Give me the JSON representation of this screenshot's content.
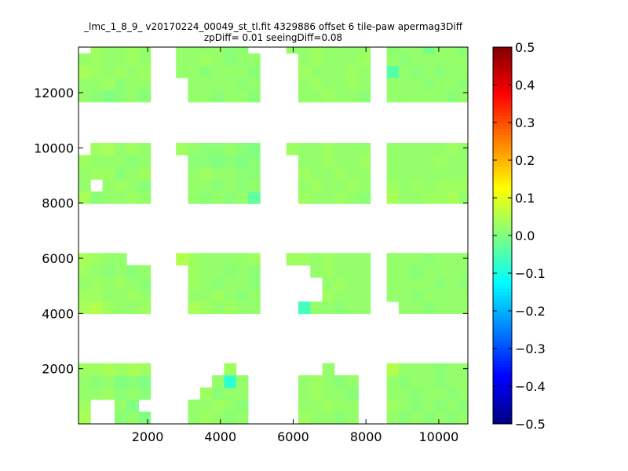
{
  "chart_data": {
    "type": "heatmap",
    "title": "_lmc_1_8_9_ v20170224_00049_st_tl.fit 4329886 offset 6 tile-paw apermag3Diff",
    "subtitle": "zpDiff= 0.01 seeingDiff=0.08",
    "xlabel": "",
    "ylabel": "",
    "xlim": [
      100,
      10800
    ],
    "ylim": [
      0,
      13650
    ],
    "xticks": [
      2000,
      4000,
      6000,
      8000,
      10000
    ],
    "xtick_labels": [
      "2000",
      "4000",
      "6000",
      "8000",
      "10000"
    ],
    "yticks": [
      2000,
      4000,
      6000,
      8000,
      10000,
      12000
    ],
    "ytick_labels": [
      "2000",
      "4000",
      "6000",
      "8000",
      "10000",
      "12000"
    ],
    "grid": false,
    "colormap": "jet",
    "value_range": [
      -0.5,
      0.5
    ],
    "colorbar": {
      "ticks": [
        0.5,
        0.4,
        0.3,
        0.2,
        0.1,
        0.0,
        -0.1,
        -0.2,
        -0.3,
        -0.4,
        -0.5
      ],
      "tick_labels": [
        "0.5",
        "0.4",
        "0.3",
        "0.2",
        "0.1",
        "0.0",
        "−0.1",
        "−0.2",
        "−0.3",
        "−0.4",
        "−0.5"
      ]
    },
    "cell_size": [
      330,
      440
    ],
    "cell_columns": [
      [
        100,
        430,
        760,
        1090,
        1420,
        1750
      ],
      [
        2780,
        3110,
        3440,
        3770,
        4100,
        4430,
        4760
      ],
      [
        5810,
        6140,
        6470,
        6800,
        7130,
        7460,
        7790
      ],
      [
        8570,
        8900,
        9230,
        9560,
        9890,
        10220,
        10550
      ]
    ],
    "cell_rows": [
      [
        0,
        440,
        880,
        1320,
        1760
      ],
      [
        3990,
        4430,
        4870,
        5310,
        5750
      ],
      [
        7980,
        8420,
        8860,
        9300,
        9740
      ],
      [
        11660,
        12100,
        12540,
        12980,
        13420
      ]
    ],
    "missing_cells": [
      [
        0,
        0,
        0,
        1
      ],
      [
        0,
        0,
        0,
        2
      ],
      [
        0,
        0,
        1,
        1
      ],
      [
        0,
        0,
        1,
        2
      ],
      [
        0,
        1,
        4,
        4
      ],
      [
        0,
        1,
        4,
        5
      ],
      [
        0,
        1,
        4,
        6
      ],
      [
        0,
        2,
        4,
        0
      ],
      [
        0,
        2,
        1,
        1
      ],
      [
        0,
        2,
        4,
        6
      ],
      [
        0,
        3,
        4,
        0
      ],
      [
        1,
        0,
        0,
        0
      ],
      [
        1,
        0,
        1,
        0
      ],
      [
        1,
        0,
        2,
        0
      ],
      [
        1,
        0,
        2,
        1
      ],
      [
        1,
        0,
        3,
        0
      ],
      [
        1,
        0,
        3,
        1
      ],
      [
        1,
        0,
        3,
        2
      ],
      [
        1,
        0,
        4,
        0
      ],
      [
        1,
        0,
        4,
        1
      ],
      [
        1,
        0,
        4,
        2
      ],
      [
        1,
        0,
        4,
        3
      ],
      [
        1,
        0,
        4,
        5
      ],
      [
        1,
        1,
        0,
        0
      ],
      [
        1,
        1,
        1,
        0
      ],
      [
        1,
        1,
        2,
        0
      ],
      [
        1,
        1,
        3,
        0
      ],
      [
        1,
        2,
        0,
        0
      ],
      [
        1,
        2,
        1,
        0
      ],
      [
        1,
        2,
        2,
        0
      ],
      [
        1,
        2,
        3,
        0
      ],
      [
        1,
        3,
        0,
        0
      ],
      [
        1,
        3,
        1,
        0
      ],
      [
        1,
        3,
        4,
        6
      ],
      [
        2,
        0,
        0,
        0
      ],
      [
        2,
        0,
        1,
        0
      ],
      [
        2,
        0,
        2,
        0
      ],
      [
        2,
        0,
        3,
        0
      ],
      [
        2,
        0,
        4,
        0
      ],
      [
        2,
        0,
        4,
        1
      ],
      [
        2,
        0,
        4,
        2
      ],
      [
        2,
        0,
        4,
        4
      ],
      [
        2,
        0,
        4,
        5
      ],
      [
        2,
        1,
        0,
        0
      ],
      [
        2,
        1,
        1,
        0
      ],
      [
        2,
        1,
        1,
        1
      ],
      [
        2,
        1,
        1,
        2
      ],
      [
        2,
        1,
        2,
        0
      ],
      [
        2,
        1,
        2,
        1
      ],
      [
        2,
        1,
        2,
        2
      ],
      [
        2,
        1,
        3,
        0
      ],
      [
        2,
        1,
        3,
        1
      ],
      [
        2,
        2,
        0,
        0
      ],
      [
        2,
        2,
        1,
        0
      ],
      [
        2,
        2,
        2,
        0
      ],
      [
        2,
        2,
        3,
        0
      ],
      [
        2,
        3,
        0,
        0
      ],
      [
        2,
        3,
        1,
        0
      ],
      [
        2,
        3,
        2,
        0
      ],
      [
        2,
        3,
        3,
        0
      ]
    ],
    "cell_values": {
      "0,0,0,0": 0.04,
      "0,0,0,3": 0.01,
      "0,0,0,4": 0.02,
      "0,0,0,5": 0.0,
      "0,0,1,0": 0.03,
      "0,0,1,3": 0.02,
      "0,0,1,4": 0.0,
      "0,0,2,0": 0.02,
      "0,0,2,1": 0.02,
      "0,0,2,2": 0.03,
      "0,0,2,3": 0.01,
      "0,0,2,4": 0.02,
      "0,0,2,5": 0.01,
      "0,0,3,0": 0.02,
      "0,0,3,1": 0.01,
      "0,0,3,2": 0.02,
      "0,0,3,3": 0.0,
      "0,0,3,4": 0.01,
      "0,0,3,5": 0.0,
      "0,0,4,0": 0.03,
      "0,0,4,1": 0.03,
      "0,0,4,2": 0.04,
      "0,0,4,3": 0.03,
      "0,0,4,4": 0.04,
      "0,0,4,5": 0.03,
      "0,1,0,0": 0.04,
      "0,1,0,1": 0.05,
      "0,1,0,2": 0.03,
      "0,1,0,3": 0.02,
      "0,1,0,4": 0.02,
      "0,1,0,5": 0.03,
      "0,1,1,0": 0.03,
      "0,1,1,1": 0.03,
      "0,1,1,2": 0.02,
      "0,1,1,3": 0.02,
      "0,1,1,4": 0.03,
      "0,1,1,5": 0.02,
      "0,1,2,0": 0.02,
      "0,1,2,1": 0.03,
      "0,1,2,2": 0.02,
      "0,1,2,3": 0.03,
      "0,1,2,4": 0.02,
      "0,1,2,5": 0.01,
      "0,1,3,0": 0.03,
      "0,1,3,1": 0.02,
      "0,1,3,2": 0.01,
      "0,1,3,3": 0.02,
      "0,1,3,4": 0.01,
      "0,1,3,5": 0.02,
      "0,1,4,0": 0.04,
      "0,1,4,1": 0.03,
      "0,1,4,2": 0.02,
      "0,1,4,3": 0.02,
      "0,2,0,0": 0.04,
      "0,2,0,1": 0.01,
      "0,2,0,2": 0.02,
      "0,2,0,3": 0.02,
      "0,2,0,4": 0.03,
      "0,2,0,5": 0.02,
      "0,2,0,6": 0.01,
      "0,2,1,0": 0.02,
      "0,2,1,2": 0.02,
      "0,2,1,3": 0.03,
      "0,2,1,4": 0.02,
      "0,2,1,5": 0.01,
      "0,2,1,6": 0.01,
      "0,2,2,0": 0.02,
      "0,2,2,1": 0.03,
      "0,2,2,2": 0.03,
      "0,2,2,3": 0.01,
      "0,2,2,4": 0.02,
      "0,2,2,5": 0.03,
      "0,2,2,6": 0.01,
      "0,2,3,0": 0.03,
      "0,2,3,1": 0.02,
      "0,2,3,2": 0.02,
      "0,2,3,3": 0.02,
      "0,2,3,4": 0.01,
      "0,2,3,5": 0.02,
      "0,2,3,6": 0.02,
      "0,2,4,1": 0.03,
      "0,2,4,2": 0.04,
      "0,2,4,3": 0.02,
      "0,2,4,4": 0.03,
      "0,2,4,5": 0.02,
      "0,3,0,0": 0.02,
      "0,3,0,1": 0.01,
      "0,3,0,2": 0.0,
      "0,3,0,3": 0.01,
      "0,3,0,4": 0.02,
      "0,3,0,5": 0.01,
      "0,3,0,6": 0.02,
      "0,3,1,0": 0.02,
      "0,3,1,1": 0.02,
      "0,3,1,2": 0.03,
      "0,3,1,3": 0.01,
      "0,3,1,4": 0.02,
      "0,3,1,5": 0.02,
      "0,3,1,6": 0.01,
      "0,3,2,0": 0.04,
      "0,3,2,1": 0.03,
      "0,3,2,2": 0.02,
      "0,3,2,3": 0.03,
      "0,3,2,4": 0.02,
      "0,3,2,5": 0.03,
      "0,3,2,6": 0.02,
      "0,3,3,0": 0.02,
      "0,3,3,1": 0.03,
      "0,3,3,2": 0.02,
      "0,3,3,3": 0.02,
      "0,3,3,4": 0.03,
      "0,3,3,5": 0.02,
      "0,3,3,6": 0.02,
      "0,3,4,1": 0.03,
      "0,3,4,2": 0.02,
      "0,3,4,3": 0.02,
      "0,3,4,4": 0.03,
      "0,3,4,5": 0.02,
      "0,3,4,6": 0.03,
      "1,0,0,1": 0.02,
      "1,0,0,2": 0.03,
      "1,0,0,3": 0.02,
      "1,0,0,4": 0.01,
      "1,0,0,5": 0.02,
      "1,0,1,1": 0.02,
      "1,0,1,2": 0.02,
      "1,0,1,3": 0.03,
      "1,0,1,4": 0.02,
      "1,0,1,5": 0.01,
      "1,0,2,2": 0.03,
      "1,0,2,3": 0.01,
      "1,0,2,4": 0.02,
      "1,0,2,5": 0.02,
      "1,0,3,3": 0.02,
      "1,0,3,4": -0.08,
      "1,0,3,5": 0.02,
      "1,0,4,4": 0.03,
      "1,1,0,1": 0.04,
      "1,1,0,2": 0.03,
      "1,1,0,3": 0.02,
      "1,1,0,4": 0.03,
      "1,1,0,5": 0.02,
      "1,1,0,6": 0.02,
      "1,1,1,1": 0.02,
      "1,1,1,2": 0.02,
      "1,1,1,3": 0.03,
      "1,1,1,4": 0.02,
      "1,1,1,5": 0.01,
      "1,1,1,6": 0.02,
      "1,1,2,1": 0.03,
      "1,1,2,2": 0.02,
      "1,1,2,3": 0.01,
      "1,1,2,4": 0.02,
      "1,1,2,5": 0.02,
      "1,1,2,6": 0.01,
      "1,1,3,1": 0.03,
      "1,1,3,2": 0.02,
      "1,1,3,3": 0.02,
      "1,1,3,4": 0.01,
      "1,1,3,5": 0.02,
      "1,1,3,6": 0.01,
      "1,1,4,0": 0.05,
      "1,1,4,1": 0.03,
      "1,1,4,2": 0.02,
      "1,1,4,3": 0.02,
      "1,1,4,4": 0.02,
      "1,1,4,5": 0.02,
      "1,1,4,6": 0.03,
      "1,2,0,1": 0.02,
      "1,2,0,2": 0.01,
      "1,2,0,3": 0.02,
      "1,2,0,4": 0.01,
      "1,2,0,5": 0.02,
      "1,2,0,6": -0.03,
      "1,2,1,1": 0.02,
      "1,2,1,2": 0.02,
      "1,2,1,3": 0.01,
      "1,2,1,4": 0.02,
      "1,2,1,5": 0.01,
      "1,2,1,6": 0.02,
      "1,2,2,1": 0.02,
      "1,2,2,2": 0.03,
      "1,2,2,3": 0.02,
      "1,2,2,4": 0.02,
      "1,2,2,5": 0.01,
      "1,2,2,6": 0.01,
      "1,2,3,1": 0.01,
      "1,2,3,2": 0.01,
      "1,2,3,3": 0.0,
      "1,2,3,4": 0.01,
      "1,2,3,5": 0.0,
      "1,2,3,6": 0.01,
      "1,2,4,0": 0.03,
      "1,2,4,1": 0.02,
      "1,2,4,2": 0.01,
      "1,2,4,3": 0.01,
      "1,2,4,4": 0.02,
      "1,2,4,5": 0.01,
      "1,2,4,6": 0.0,
      "1,3,0,1": 0.02,
      "1,3,0,2": 0.02,
      "1,3,0,3": 0.01,
      "1,3,0,4": 0.02,
      "1,3,0,5": 0.02,
      "1,3,0,6": 0.01,
      "1,3,1,1": 0.02,
      "1,3,1,2": 0.02,
      "1,3,1,3": 0.02,
      "1,3,1,4": 0.02,
      "1,3,1,5": 0.01,
      "1,3,1,6": 0.02,
      "1,3,2,0": 0.02,
      "1,3,2,1": 0.02,
      "1,3,2,2": 0.01,
      "1,3,2,3": 0.02,
      "1,3,2,4": 0.02,
      "1,3,2,5": 0.02,
      "1,3,2,6": 0.01,
      "1,3,3,0": 0.02,
      "1,3,3,1": 0.02,
      "1,3,3,2": 0.03,
      "1,3,3,3": 0.02,
      "1,3,3,4": 0.01,
      "1,3,3,5": 0.02,
      "1,3,3,6": 0.02,
      "1,3,4,0": 0.02,
      "1,3,4,1": 0.02,
      "1,3,4,2": 0.02,
      "1,3,4,3": 0.02,
      "1,3,4,4": 0.01,
      "1,3,4,5": 0.01,
      "2,0,0,1": 0.03,
      "2,0,0,2": 0.02,
      "2,0,0,3": 0.02,
      "2,0,0,4": 0.01,
      "2,0,0,5": 0.02,
      "2,0,1,1": 0.02,
      "2,0,1,2": 0.02,
      "2,0,1,3": 0.03,
      "2,0,1,4": 0.02,
      "2,0,1,5": 0.02,
      "2,0,2,1": 0.02,
      "2,0,2,2": 0.03,
      "2,0,2,3": 0.02,
      "2,0,2,4": 0.02,
      "2,0,2,5": 0.01,
      "2,0,3,1": 0.02,
      "2,0,3,2": 0.03,
      "2,0,3,3": 0.02,
      "2,0,3,4": 0.01,
      "2,0,3,5": 0.02,
      "2,0,4,3": 0.02,
      "2,1,0,0": 0.02,
      "2,1,0,1": -0.06,
      "2,1,0,2": 0.02,
      "2,1,0,3": 0.02,
      "2,1,0,4": 0.01,
      "2,1,0,5": 0.02,
      "2,1,0,6": 0.02,
      "2,1,1,3": 0.03,
      "2,1,1,4": 0.02,
      "2,1,1,5": 0.02,
      "2,1,1,6": 0.02,
      "2,1,2,3": 0.02,
      "2,1,2,4": 0.03,
      "2,1,2,5": 0.02,
      "2,1,2,6": 0.02,
      "2,1,3,2": 0.02,
      "2,1,3,3": 0.03,
      "2,1,3,4": 0.02,
      "2,1,3,5": 0.02,
      "2,1,3,6": 0.02,
      "2,1,4,0": 0.03,
      "2,1,4,1": 0.03,
      "2,1,4,2": 0.02,
      "2,1,4,3": 0.03,
      "2,1,4,4": 0.02,
      "2,1,4,5": 0.02,
      "2,1,4,6": 0.02,
      "2,2,0,1": 0.03,
      "2,2,0,2": 0.02,
      "2,2,0,3": 0.02,
      "2,2,0,4": 0.03,
      "2,2,0,5": 0.02,
      "2,2,0,6": 0.01,
      "2,2,1,1": 0.02,
      "2,2,1,2": 0.03,
      "2,2,1,3": 0.02,
      "2,2,1,4": 0.02,
      "2,2,1,5": 0.03,
      "2,2,1,6": 0.02,
      "2,2,2,1": 0.03,
      "2,2,2,2": 0.02,
      "2,2,2,3": 0.02,
      "2,2,2,4": 0.03,
      "2,2,2,5": 0.02,
      "2,2,2,6": 0.02,
      "2,2,3,1": 0.02,
      "2,2,3,2": 0.02,
      "2,2,3,3": 0.03,
      "2,2,3,4": 0.02,
      "2,2,3,5": 0.02,
      "2,2,3,6": 0.03,
      "2,2,4,0": 0.03,
      "2,2,4,1": 0.02,
      "2,2,4,2": 0.02,
      "2,2,4,3": 0.03,
      "2,2,4,4": 0.02,
      "2,2,4,5": 0.02,
      "2,2,4,6": 0.02,
      "2,3,0,1": 0.02,
      "2,3,0,2": 0.02,
      "2,3,0,3": 0.03,
      "2,3,0,4": 0.02,
      "2,3,0,5": 0.02,
      "2,3,0,6": 0.01,
      "2,3,1,1": 0.02,
      "2,3,1,2": 0.03,
      "2,3,1,3": 0.02,
      "2,3,1,4": 0.02,
      "2,3,1,5": 0.03,
      "2,3,1,6": 0.02,
      "2,3,2,1": 0.03,
      "2,3,2,2": 0.02,
      "2,3,2,3": 0.02,
      "2,3,2,4": 0.02,
      "2,3,2,5": 0.03,
      "2,3,2,6": 0.02,
      "2,3,3,1": 0.02,
      "2,3,3,2": 0.03,
      "2,3,3,3": 0.02,
      "2,3,3,4": 0.02,
      "2,3,3,5": 0.02,
      "2,3,3,6": 0.03,
      "2,3,4,0": 0.02,
      "2,3,4,1": 0.02,
      "2,3,4,2": 0.03,
      "2,3,4,3": 0.02,
      "2,3,4,4": 0.02,
      "2,3,4,5": 0.02,
      "2,3,4,6": 0.02,
      "3,0,0,0": 0.02,
      "3,0,0,1": 0.01,
      "3,0,0,2": 0.02,
      "3,0,0,3": 0.01,
      "3,0,0,4": 0.02,
      "3,0,0,5": 0.01,
      "3,0,0,6": 0.02,
      "3,0,1,0": 0.03,
      "3,0,1,1": 0.02,
      "3,0,1,2": 0.01,
      "3,0,1,3": 0.02,
      "3,0,1,4": 0.01,
      "3,0,1,5": 0.02,
      "3,0,1,6": 0.01,
      "3,0,2,0": 0.02,
      "3,0,2,1": 0.02,
      "3,0,2,2": 0.01,
      "3,0,2,3": 0.02,
      "3,0,2,4": 0.02,
      "3,0,2,5": 0.01,
      "3,0,2,6": 0.02,
      "3,0,3,0": 0.02,
      "3,0,3,1": 0.01,
      "3,0,3,2": 0.02,
      "3,0,3,3": 0.02,
      "3,0,3,4": 0.01,
      "3,0,3,5": 0.02,
      "3,0,3,6": 0.02,
      "3,0,4,0": 0.05,
      "3,0,4,1": 0.02,
      "3,0,4,2": 0.02,
      "3,0,4,3": 0.02,
      "3,0,4,4": 0.01,
      "3,0,4,5": 0.02,
      "3,0,4,6": 0.02,
      "3,1,0,1": 0.02,
      "3,1,0,2": 0.02,
      "3,1,0,3": 0.01,
      "3,1,0,4": 0.02,
      "3,1,0,5": 0.02,
      "3,1,0,6": 0.02,
      "3,1,1,0": 0.02,
      "3,1,1,1": 0.02,
      "3,1,1,2": 0.01,
      "3,1,1,3": 0.02,
      "3,1,1,4": 0.02,
      "3,1,1,5": 0.02,
      "3,1,1,6": 0.02,
      "3,1,2,0": 0.02,
      "3,1,2,1": 0.02,
      "3,1,2,2": 0.02,
      "3,1,2,3": 0.02,
      "3,1,2,4": 0.01,
      "3,1,2,5": 0.02,
      "3,1,2,6": 0.01,
      "3,1,3,0": 0.02,
      "3,1,3,1": 0.02,
      "3,1,3,2": 0.01,
      "3,1,3,3": 0.02,
      "3,1,3,4": 0.02,
      "3,1,3,5": 0.02,
      "3,1,3,6": 0.02,
      "3,1,4,0": 0.02,
      "3,1,4,1": 0.02,
      "3,1,4,2": 0.02,
      "3,1,4,3": 0.01,
      "3,1,4,4": 0.02,
      "3,1,4,5": 0.02,
      "3,1,4,6": 0.02,
      "3,2,0,0": 0.04,
      "3,2,0,1": 0.02,
      "3,2,0,2": 0.02,
      "3,2,0,3": 0.03,
      "3,2,0,4": 0.03,
      "3,2,0,5": 0.04,
      "3,2,0,6": 0.02,
      "3,2,1,0": 0.03,
      "3,2,1,1": 0.02,
      "3,2,1,2": 0.03,
      "3,2,1,3": 0.02,
      "3,2,1,4": 0.03,
      "3,2,1,5": 0.03,
      "3,2,1,6": 0.03,
      "3,2,2,0": 0.02,
      "3,2,2,1": 0.02,
      "3,2,2,2": 0.02,
      "3,2,2,3": 0.02,
      "3,2,2,4": 0.02,
      "3,2,2,5": 0.02,
      "3,2,2,6": 0.02,
      "3,2,3,0": 0.02,
      "3,2,3,1": 0.02,
      "3,2,3,2": 0.02,
      "3,2,3,3": 0.02,
      "3,2,3,4": 0.03,
      "3,2,3,5": 0.02,
      "3,2,3,6": 0.02,
      "3,2,4,0": 0.02,
      "3,2,4,1": 0.02,
      "3,2,4,2": 0.02,
      "3,2,4,3": 0.02,
      "3,2,4,4": 0.02,
      "3,2,4,5": 0.03,
      "3,2,4,6": 0.02,
      "3,3,0,0": 0.02,
      "3,3,0,1": 0.02,
      "3,3,0,2": 0.02,
      "3,3,0,3": 0.02,
      "3,3,0,4": 0.02,
      "3,3,0,5": 0.01,
      "3,3,0,6": 0.02,
      "3,3,1,0": 0.02,
      "3,3,1,1": 0.02,
      "3,3,1,2": 0.02,
      "3,3,1,3": 0.01,
      "3,3,1,4": 0.02,
      "3,3,1,5": 0.02,
      "3,3,1,6": 0.01,
      "3,3,2,0": -0.04,
      "3,3,2,1": 0.02,
      "3,3,2,2": 0.01,
      "3,3,2,3": 0.02,
      "3,3,2,4": 0.01,
      "3,3,2,5": 0.02,
      "3,3,2,6": 0.02,
      "3,3,3,0": 0.02,
      "3,3,3,1": 0.01,
      "3,3,3,2": 0.02,
      "3,3,3,3": 0.02,
      "3,3,3,4": 0.02,
      "3,3,3,5": 0.02,
      "3,3,3,6": 0.02,
      "3,3,4,0": 0.01,
      "3,3,4,1": 0.02,
      "3,3,4,2": 0.02,
      "3,3,4,3": -0.01,
      "3,3,4,4": 0.02,
      "3,3,4,5": 0.02,
      "3,3,4,6": 0.01
    }
  }
}
